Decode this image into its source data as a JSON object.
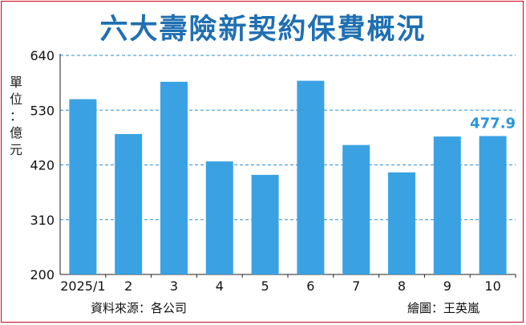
{
  "title": "六大壽險新契約保費概況",
  "unit_label": [
    "單",
    "位",
    "：",
    "億",
    "元"
  ],
  "source": "資料來源：各公司",
  "credit": "繪圖：王英嵐",
  "chart_data": {
    "type": "bar",
    "title": "六大壽險新契約保費概況",
    "categories": [
      "2025/1",
      "2",
      "3",
      "4",
      "5",
      "6",
      "7",
      "8",
      "9",
      "10"
    ],
    "values": [
      552,
      482,
      587,
      427,
      400,
      589,
      460,
      405,
      477,
      477.9
    ],
    "ylim": [
      200,
      640
    ],
    "yticks": [
      200,
      310,
      420,
      530,
      640
    ],
    "grid": true,
    "annotations": [
      {
        "category": "10",
        "text": "477.9"
      }
    ],
    "colors": {
      "bar": "#3aa2e3",
      "annotation": "#2a96dd",
      "grid": "#2a8fd6",
      "axis": "#222222"
    }
  }
}
